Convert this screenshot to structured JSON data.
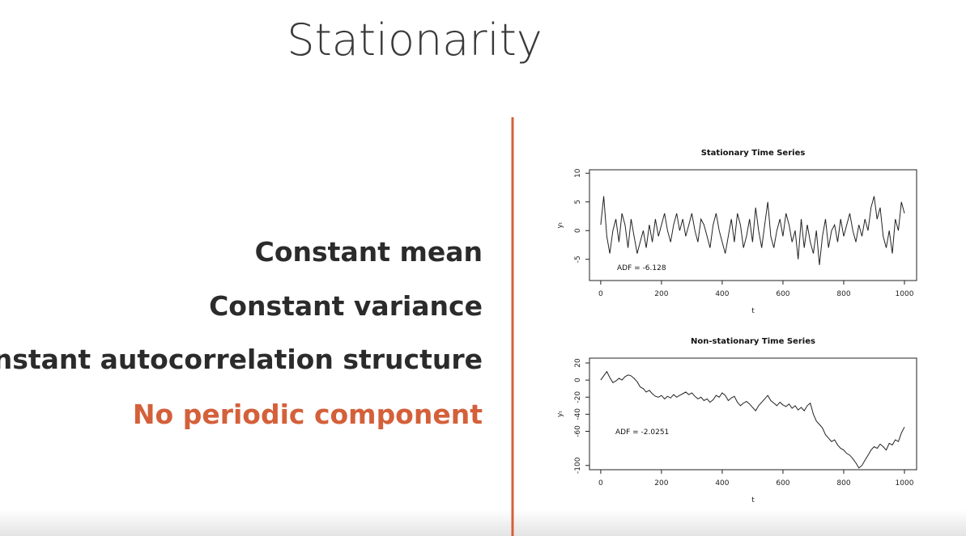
{
  "slide": {
    "title": "Stationarity",
    "points": [
      "Constant mean",
      "Constant variance",
      "Constant autocorrelation structure",
      "No periodic component"
    ]
  },
  "chart_data": [
    {
      "type": "line",
      "title": "Stationary Time Series",
      "x_label": "t",
      "y_label": "yₜ",
      "annotation": "ADF = -6.128",
      "color": "#222222",
      "x": [
        0,
        10,
        20,
        30,
        40,
        50,
        60,
        70,
        80,
        90,
        100,
        110,
        120,
        130,
        140,
        150,
        160,
        170,
        180,
        190,
        200,
        210,
        220,
        230,
        240,
        250,
        260,
        270,
        280,
        290,
        300,
        310,
        320,
        330,
        340,
        350,
        360,
        370,
        380,
        390,
        400,
        410,
        420,
        430,
        440,
        450,
        460,
        470,
        480,
        490,
        500,
        510,
        520,
        530,
        540,
        550,
        560,
        570,
        580,
        590,
        600,
        610,
        620,
        630,
        640,
        650,
        660,
        670,
        680,
        690,
        700,
        710,
        720,
        730,
        740,
        750,
        760,
        770,
        780,
        790,
        800,
        810,
        820,
        830,
        840,
        850,
        860,
        870,
        880,
        890,
        900,
        910,
        920,
        930,
        940,
        950,
        960,
        970,
        980,
        990,
        1000
      ],
      "values": [
        1,
        6,
        -1,
        -4,
        0,
        2,
        -2,
        3,
        1,
        -3,
        2,
        -1,
        -4,
        -2,
        0,
        -3,
        1,
        -2,
        2,
        -1,
        1,
        3,
        0,
        -2,
        1,
        3,
        0,
        2,
        -1,
        1,
        3,
        0,
        -2,
        2,
        1,
        -1,
        -3,
        1,
        3,
        0,
        -2,
        -4,
        -1,
        2,
        -2,
        3,
        1,
        -3,
        -1,
        2,
        -2,
        4,
        0,
        -3,
        1,
        5,
        -1,
        -3,
        0,
        2,
        -1,
        3,
        1,
        -2,
        0,
        -5,
        2,
        -3,
        1,
        -2,
        -4,
        0,
        -6,
        -1,
        2,
        -3,
        0,
        1,
        -2,
        2,
        -1,
        1,
        3,
        0,
        -2,
        1,
        -1,
        2,
        0,
        4,
        6,
        2,
        4,
        -1,
        -3,
        0,
        -4,
        2,
        0,
        5,
        3
      ],
      "xlim": [
        -37,
        1040
      ],
      "ylim": [
        -8.7,
        10.6
      ],
      "xticks": [
        0,
        200,
        400,
        600,
        800,
        1000
      ],
      "yticks": [
        -5,
        0,
        5,
        10
      ]
    },
    {
      "type": "line",
      "title": "Non-stationary Time Series",
      "x_label": "t",
      "y_label": "yₜ",
      "annotation": "ADF = -2.0251",
      "color": "#222222",
      "x": [
        0,
        10,
        20,
        30,
        40,
        50,
        60,
        70,
        80,
        90,
        100,
        110,
        120,
        130,
        140,
        150,
        160,
        170,
        180,
        190,
        200,
        210,
        220,
        230,
        240,
        250,
        260,
        270,
        280,
        290,
        300,
        310,
        320,
        330,
        340,
        350,
        360,
        370,
        380,
        390,
        400,
        410,
        420,
        430,
        440,
        450,
        460,
        470,
        480,
        490,
        500,
        510,
        520,
        530,
        540,
        550,
        560,
        570,
        580,
        590,
        600,
        610,
        620,
        630,
        640,
        650,
        660,
        670,
        680,
        690,
        700,
        710,
        720,
        730,
        740,
        750,
        760,
        770,
        780,
        790,
        800,
        810,
        820,
        830,
        840,
        850,
        860,
        870,
        880,
        890,
        900,
        910,
        920,
        930,
        940,
        950,
        960,
        970,
        980,
        990,
        1000
      ],
      "values": [
        0,
        5,
        10,
        3,
        -3,
        -1,
        2,
        0,
        4,
        6,
        5,
        2,
        -2,
        -8,
        -10,
        -14,
        -12,
        -16,
        -19,
        -20,
        -18,
        -22,
        -19,
        -21,
        -17,
        -20,
        -18,
        -16,
        -14,
        -17,
        -15,
        -19,
        -22,
        -20,
        -24,
        -22,
        -26,
        -23,
        -18,
        -20,
        -15,
        -18,
        -24,
        -21,
        -19,
        -26,
        -30,
        -27,
        -25,
        -28,
        -32,
        -36,
        -30,
        -26,
        -22,
        -18,
        -24,
        -27,
        -30,
        -26,
        -29,
        -31,
        -28,
        -33,
        -30,
        -35,
        -32,
        -36,
        -30,
        -27,
        -40,
        -48,
        -52,
        -56,
        -64,
        -68,
        -72,
        -70,
        -76,
        -80,
        -82,
        -86,
        -88,
        -92,
        -97,
        -103,
        -100,
        -94,
        -88,
        -82,
        -78,
        -80,
        -75,
        -78,
        -82,
        -74,
        -76,
        -70,
        -72,
        -62,
        -55
      ],
      "xlim": [
        -37,
        1040
      ],
      "ylim": [
        -105,
        25.7
      ],
      "xticks": [
        0,
        200,
        400,
        600,
        800,
        1000
      ],
      "yticks": [
        -100,
        -60,
        -40,
        -20,
        0,
        20
      ]
    }
  ]
}
